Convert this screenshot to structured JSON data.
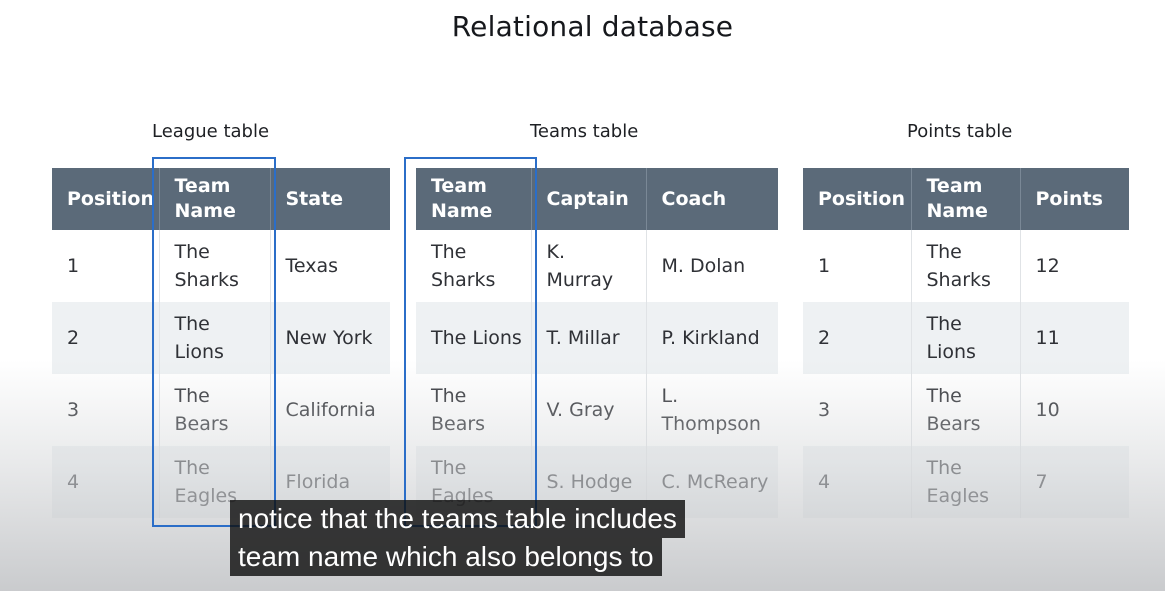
{
  "title": "Relational database",
  "tables": [
    {
      "caption": "League table",
      "headers": [
        "Position",
        "Team Name",
        "State"
      ],
      "rows": [
        [
          "1",
          "The Sharks",
          "Texas"
        ],
        [
          "2",
          "The Lions",
          "New York"
        ],
        [
          "3",
          "The Bears",
          "California"
        ],
        [
          "4",
          "The Eagles",
          "Florida"
        ]
      ]
    },
    {
      "caption": "Teams table",
      "headers": [
        "Team Name",
        "Captain",
        "Coach"
      ],
      "rows": [
        [
          "The Sharks",
          "K. Murray",
          "M. Dolan"
        ],
        [
          "The Lions",
          "T. Millar",
          "P. Kirkland"
        ],
        [
          "The Bears",
          "V. Gray",
          "L. Thompson"
        ],
        [
          "The Eagles",
          "S. Hodge",
          "C. McReary"
        ]
      ]
    },
    {
      "caption": "Points table",
      "headers": [
        "Position",
        "Team Name",
        "Points"
      ],
      "rows": [
        [
          "1",
          "The Sharks",
          "12"
        ],
        [
          "2",
          "The Lions",
          "11"
        ],
        [
          "3",
          "The Bears",
          "10"
        ],
        [
          "4",
          "The Eagles",
          "7"
        ]
      ]
    }
  ],
  "subtitle_lines": [
    "notice that the teams table includes",
    "team name which also belongs to"
  ],
  "colors": {
    "header_bg": "#5b6a79",
    "highlight_border": "#2b6ec8",
    "row_alt": "#eef1f3"
  }
}
